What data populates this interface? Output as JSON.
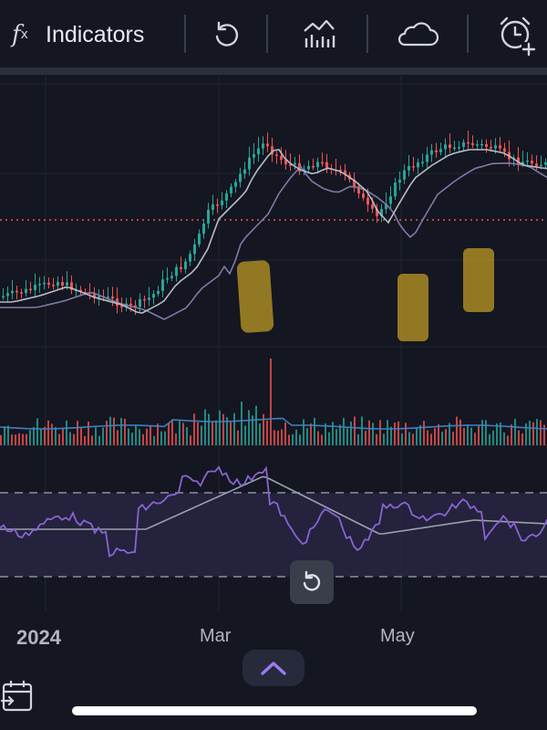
{
  "toolbar": {
    "fx_symbol": "f",
    "fx_sub": "x",
    "indicators_label": "Indicators",
    "icons": [
      "fx-icon",
      "replay-icon",
      "compare-chart-icon",
      "cloud-icon",
      "alarm-add-icon"
    ]
  },
  "axis": {
    "x_labels": {
      "year": "2024",
      "mar": "Mar",
      "may": "May"
    }
  },
  "colors": {
    "background": "#141621",
    "candle_up": "#26a69a",
    "candle_down": "#ef5350",
    "ma_fast": "#b8bcc6",
    "ma_slow": "#7f7aa8",
    "rsi_line": "#8a63d2",
    "rsi_band": "#2a2745",
    "price_line": "#ef5350",
    "accent": "#9b7cf3"
  },
  "controls": {
    "reset_icon": "reset-icon",
    "expand_icon": "chevron-up-icon",
    "calendar_icon": "calendar-goto-icon"
  }
}
